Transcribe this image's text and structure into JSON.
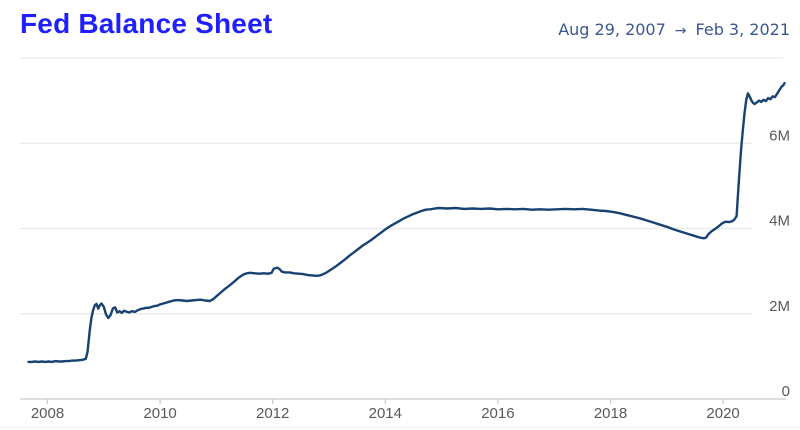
{
  "header": {
    "title": "Fed Balance Sheet",
    "date_range": {
      "start": "Aug 29, 2007",
      "arrow": "→",
      "end": "Feb 3, 2021"
    }
  },
  "colors": {
    "title": "#1f1fff",
    "date_range": "#3a5794",
    "line": "#174272",
    "gridline": "#e9e9e9",
    "axis_line": "#c9c9c9",
    "tick_label": "#595959",
    "background": "#ffffff"
  },
  "chart_data": {
    "type": "line",
    "title": "Fed Balance Sheet",
    "xlabel": "",
    "ylabel": "",
    "unit": "M = millions (USD)",
    "x_range": [
      2007.66,
      2021.09
    ],
    "y_range": [
      0,
      8
    ],
    "grid": "horizontal",
    "legend": "none",
    "x_ticks": [
      {
        "value": 2008,
        "label": "2008"
      },
      {
        "value": 2010,
        "label": "2010"
      },
      {
        "value": 2012,
        "label": "2012"
      },
      {
        "value": 2014,
        "label": "2014"
      },
      {
        "value": 2016,
        "label": "2016"
      },
      {
        "value": 2018,
        "label": "2018"
      },
      {
        "value": 2020,
        "label": "2020"
      }
    ],
    "y_ticks": [
      {
        "value": 0,
        "label": "0"
      },
      {
        "value": 2,
        "label": "2M"
      },
      {
        "value": 4,
        "label": "4M"
      },
      {
        "value": 6,
        "label": "6M"
      },
      {
        "value": 8,
        "label": ""
      }
    ],
    "series": [
      {
        "name": "Fed Balance Sheet",
        "points": [
          [
            2007.66,
            0.87
          ],
          [
            2007.72,
            0.87
          ],
          [
            2007.78,
            0.88
          ],
          [
            2007.84,
            0.87
          ],
          [
            2007.9,
            0.88
          ],
          [
            2007.96,
            0.87
          ],
          [
            2008.02,
            0.88
          ],
          [
            2008.08,
            0.87
          ],
          [
            2008.14,
            0.89
          ],
          [
            2008.2,
            0.88
          ],
          [
            2008.26,
            0.88
          ],
          [
            2008.32,
            0.89
          ],
          [
            2008.38,
            0.89
          ],
          [
            2008.44,
            0.9
          ],
          [
            2008.5,
            0.9
          ],
          [
            2008.56,
            0.91
          ],
          [
            2008.62,
            0.92
          ],
          [
            2008.68,
            0.94
          ],
          [
            2008.71,
            1.1
          ],
          [
            2008.73,
            1.35
          ],
          [
            2008.75,
            1.6
          ],
          [
            2008.78,
            1.9
          ],
          [
            2008.81,
            2.08
          ],
          [
            2008.84,
            2.2
          ],
          [
            2008.87,
            2.23
          ],
          [
            2008.9,
            2.12
          ],
          [
            2008.93,
            2.2
          ],
          [
            2008.96,
            2.24
          ],
          [
            2009.0,
            2.16
          ],
          [
            2009.04,
            1.98
          ],
          [
            2009.08,
            1.9
          ],
          [
            2009.12,
            1.97
          ],
          [
            2009.16,
            2.12
          ],
          [
            2009.2,
            2.15
          ],
          [
            2009.24,
            2.03
          ],
          [
            2009.28,
            2.06
          ],
          [
            2009.32,
            2.02
          ],
          [
            2009.36,
            2.07
          ],
          [
            2009.4,
            2.05
          ],
          [
            2009.45,
            2.03
          ],
          [
            2009.5,
            2.06
          ],
          [
            2009.55,
            2.04
          ],
          [
            2009.6,
            2.08
          ],
          [
            2009.65,
            2.11
          ],
          [
            2009.7,
            2.12
          ],
          [
            2009.75,
            2.14
          ],
          [
            2009.8,
            2.14
          ],
          [
            2009.85,
            2.16
          ],
          [
            2009.9,
            2.18
          ],
          [
            2009.95,
            2.19
          ],
          [
            2010.0,
            2.22
          ],
          [
            2010.08,
            2.25
          ],
          [
            2010.16,
            2.28
          ],
          [
            2010.24,
            2.31
          ],
          [
            2010.32,
            2.32
          ],
          [
            2010.4,
            2.31
          ],
          [
            2010.48,
            2.3
          ],
          [
            2010.56,
            2.31
          ],
          [
            2010.64,
            2.32
          ],
          [
            2010.72,
            2.33
          ],
          [
            2010.8,
            2.31
          ],
          [
            2010.88,
            2.3
          ],
          [
            2010.94,
            2.34
          ],
          [
            2011.0,
            2.41
          ],
          [
            2011.08,
            2.5
          ],
          [
            2011.16,
            2.59
          ],
          [
            2011.24,
            2.67
          ],
          [
            2011.32,
            2.76
          ],
          [
            2011.4,
            2.85
          ],
          [
            2011.48,
            2.92
          ],
          [
            2011.54,
            2.95
          ],
          [
            2011.6,
            2.96
          ],
          [
            2011.68,
            2.95
          ],
          [
            2011.76,
            2.94
          ],
          [
            2011.84,
            2.95
          ],
          [
            2011.92,
            2.94
          ],
          [
            2011.98,
            2.96
          ],
          [
            2012.02,
            3.06
          ],
          [
            2012.08,
            3.08
          ],
          [
            2012.12,
            3.05
          ],
          [
            2012.16,
            2.99
          ],
          [
            2012.22,
            2.97
          ],
          [
            2012.3,
            2.97
          ],
          [
            2012.38,
            2.95
          ],
          [
            2012.46,
            2.94
          ],
          [
            2012.54,
            2.93
          ],
          [
            2012.62,
            2.91
          ],
          [
            2012.7,
            2.9
          ],
          [
            2012.78,
            2.89
          ],
          [
            2012.84,
            2.9
          ],
          [
            2012.9,
            2.93
          ],
          [
            2012.96,
            2.97
          ],
          [
            2013.04,
            3.04
          ],
          [
            2013.12,
            3.11
          ],
          [
            2013.2,
            3.19
          ],
          [
            2013.28,
            3.27
          ],
          [
            2013.36,
            3.36
          ],
          [
            2013.44,
            3.44
          ],
          [
            2013.52,
            3.52
          ],
          [
            2013.6,
            3.6
          ],
          [
            2013.68,
            3.67
          ],
          [
            2013.76,
            3.74
          ],
          [
            2013.84,
            3.82
          ],
          [
            2013.92,
            3.9
          ],
          [
            2014.0,
            3.98
          ],
          [
            2014.08,
            4.05
          ],
          [
            2014.16,
            4.11
          ],
          [
            2014.24,
            4.17
          ],
          [
            2014.32,
            4.23
          ],
          [
            2014.4,
            4.28
          ],
          [
            2014.48,
            4.33
          ],
          [
            2014.56,
            4.37
          ],
          [
            2014.64,
            4.41
          ],
          [
            2014.72,
            4.44
          ],
          [
            2014.8,
            4.45
          ],
          [
            2014.88,
            4.47
          ],
          [
            2014.96,
            4.48
          ],
          [
            2015.1,
            4.47
          ],
          [
            2015.25,
            4.48
          ],
          [
            2015.4,
            4.46
          ],
          [
            2015.55,
            4.47
          ],
          [
            2015.7,
            4.46
          ],
          [
            2015.85,
            4.47
          ],
          [
            2016.0,
            4.45
          ],
          [
            2016.15,
            4.46
          ],
          [
            2016.3,
            4.45
          ],
          [
            2016.45,
            4.46
          ],
          [
            2016.6,
            4.44
          ],
          [
            2016.75,
            4.45
          ],
          [
            2016.9,
            4.44
          ],
          [
            2017.05,
            4.45
          ],
          [
            2017.2,
            4.46
          ],
          [
            2017.35,
            4.45
          ],
          [
            2017.5,
            4.46
          ],
          [
            2017.65,
            4.44
          ],
          [
            2017.8,
            4.42
          ],
          [
            2017.92,
            4.41
          ],
          [
            2018.04,
            4.39
          ],
          [
            2018.16,
            4.36
          ],
          [
            2018.28,
            4.32
          ],
          [
            2018.4,
            4.28
          ],
          [
            2018.52,
            4.24
          ],
          [
            2018.64,
            4.19
          ],
          [
            2018.76,
            4.14
          ],
          [
            2018.88,
            4.09
          ],
          [
            2019.0,
            4.04
          ],
          [
            2019.12,
            3.98
          ],
          [
            2019.24,
            3.93
          ],
          [
            2019.36,
            3.88
          ],
          [
            2019.48,
            3.83
          ],
          [
            2019.58,
            3.79
          ],
          [
            2019.66,
            3.77
          ],
          [
            2019.7,
            3.79
          ],
          [
            2019.74,
            3.87
          ],
          [
            2019.8,
            3.94
          ],
          [
            2019.86,
            3.99
          ],
          [
            2019.92,
            4.05
          ],
          [
            2019.98,
            4.12
          ],
          [
            2020.04,
            4.16
          ],
          [
            2020.1,
            4.15
          ],
          [
            2020.16,
            4.17
          ],
          [
            2020.2,
            4.21
          ],
          [
            2020.24,
            4.29
          ],
          [
            2020.26,
            4.7
          ],
          [
            2020.29,
            5.3
          ],
          [
            2020.32,
            5.85
          ],
          [
            2020.35,
            6.3
          ],
          [
            2020.38,
            6.7
          ],
          [
            2020.41,
            7.01
          ],
          [
            2020.44,
            7.17
          ],
          [
            2020.47,
            7.1
          ],
          [
            2020.5,
            7.01
          ],
          [
            2020.53,
            6.95
          ],
          [
            2020.56,
            6.92
          ],
          [
            2020.6,
            6.96
          ],
          [
            2020.64,
            7.0
          ],
          [
            2020.68,
            6.97
          ],
          [
            2020.72,
            7.02
          ],
          [
            2020.76,
            6.99
          ],
          [
            2020.8,
            7.06
          ],
          [
            2020.84,
            7.03
          ],
          [
            2020.88,
            7.1
          ],
          [
            2020.92,
            7.08
          ],
          [
            2020.96,
            7.16
          ],
          [
            2021.0,
            7.25
          ],
          [
            2021.04,
            7.33
          ],
          [
            2021.07,
            7.36
          ],
          [
            2021.09,
            7.41
          ]
        ]
      }
    ]
  }
}
